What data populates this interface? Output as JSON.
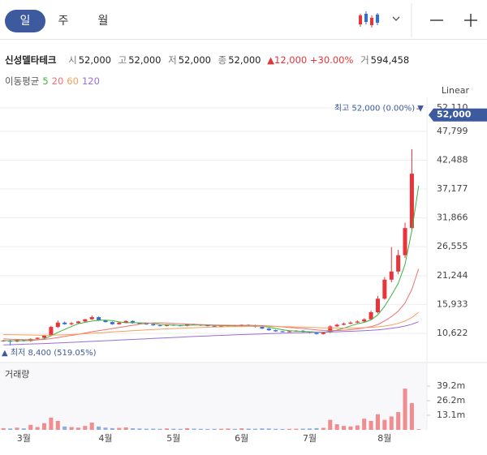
{
  "tabs": [
    "일",
    "주",
    "월"
  ],
  "header": {
    "name": "신성델타테크",
    "stats": [
      {
        "label": "시",
        "value": "52,000"
      },
      {
        "label": "고",
        "value": "52,000"
      },
      {
        "label": "저",
        "value": "52,000"
      },
      {
        "label": "종",
        "value": "52,000"
      }
    ],
    "change": "12,000",
    "change_pct": "+30.00%",
    "volume_label": "거",
    "volume": "594,458"
  },
  "chart_data": [
    {
      "type": "candlestick",
      "scale": "Linear",
      "legend_title": "이동평균",
      "up_color": "#e8343b",
      "down_color": "#2f6fd6",
      "open": [
        9200,
        9300,
        9100,
        9400,
        9200,
        9600,
        9800,
        10200,
        11800,
        12600,
        12300,
        12500,
        12800,
        13200,
        13600,
        13000,
        12700,
        12300,
        12600,
        12900,
        12500,
        12400,
        12300,
        12100,
        12000,
        12200,
        12100,
        12000,
        12300,
        12200,
        12100,
        12000,
        11900,
        12000,
        12100,
        12000,
        12200,
        12100,
        11800,
        11500,
        11200,
        11000,
        10900,
        11000,
        11100,
        10900,
        10700,
        10500,
        10800,
        11900,
        12200,
        12400,
        12600,
        12800,
        13200,
        14500,
        17000,
        20500,
        22000,
        25000,
        30000,
        52000
      ],
      "high": [
        9400,
        9400,
        9500,
        9500,
        9700,
        9900,
        10300,
        12000,
        13000,
        12800,
        12700,
        12900,
        13300,
        13900,
        13700,
        13100,
        12800,
        12700,
        13000,
        13000,
        12600,
        12500,
        12400,
        12200,
        12300,
        12300,
        12200,
        12400,
        12400,
        12300,
        12200,
        12100,
        12100,
        12200,
        12200,
        12300,
        12300,
        12200,
        11900,
        11600,
        11300,
        11100,
        11100,
        11200,
        11200,
        11000,
        10800,
        10900,
        12100,
        12400,
        12600,
        12800,
        13000,
        13400,
        14800,
        17500,
        21000,
        26500,
        26000,
        31000,
        44500,
        52000
      ],
      "low": [
        9100,
        8400,
        9000,
        9100,
        9100,
        9500,
        9700,
        10100,
        11600,
        12200,
        12100,
        12400,
        12700,
        13100,
        12900,
        12600,
        12200,
        12200,
        12500,
        12400,
        12300,
        12200,
        12000,
        11900,
        11900,
        12000,
        11900,
        11900,
        12100,
        12000,
        11900,
        11800,
        11800,
        11900,
        11900,
        11900,
        12000,
        11700,
        11400,
        11100,
        10900,
        10800,
        10800,
        10900,
        10800,
        10600,
        10400,
        10400,
        10700,
        11800,
        12100,
        12300,
        12500,
        12700,
        13100,
        14300,
        16800,
        20000,
        21500,
        24500,
        29500,
        52000
      ],
      "close": [
        9300,
        9100,
        9400,
        9200,
        9600,
        9800,
        10200,
        11800,
        12600,
        12300,
        12500,
        12800,
        13200,
        13600,
        13000,
        12700,
        12300,
        12600,
        12900,
        12500,
        12400,
        12300,
        12100,
        12000,
        12200,
        12100,
        12000,
        12300,
        12200,
        12100,
        12000,
        11900,
        12000,
        12100,
        12000,
        12200,
        12100,
        11800,
        11500,
        11200,
        11000,
        10900,
        11000,
        11100,
        10900,
        10700,
        10500,
        10800,
        11900,
        12200,
        12400,
        12600,
        12800,
        13200,
        14500,
        17000,
        20500,
        22000,
        25000,
        30000,
        40000,
        52000
      ],
      "series": [
        {
          "name": "5",
          "color": "#3db33d",
          "values": [
            9300,
            9250,
            9280,
            9260,
            9320,
            9420,
            9640,
            10160,
            10800,
            11340,
            11880,
            12400,
            12640,
            12880,
            13020,
            13060,
            12960,
            12720,
            12560,
            12600,
            12540,
            12540,
            12440,
            12260,
            12200,
            12140,
            12080,
            12120,
            12140,
            12140,
            12120,
            12100,
            12040,
            12020,
            12000,
            12040,
            12080,
            12040,
            11920,
            11760,
            11520,
            11280,
            11120,
            11040,
            10980,
            10920,
            10840,
            10800,
            11000,
            11220,
            11560,
            12000,
            12380,
            12640,
            13100,
            14020,
            15600,
            17640,
            19800,
            23300,
            29500,
            37800
          ]
        },
        {
          "name": "20",
          "color": "#f07070",
          "values": [
            9600,
            9550,
            9500,
            9470,
            9450,
            9450,
            9500,
            9650,
            9850,
            10050,
            10250,
            10450,
            10680,
            10920,
            11120,
            11300,
            11500,
            11700,
            11900,
            12100,
            12300,
            12450,
            12550,
            12560,
            12520,
            12450,
            12380,
            12320,
            12280,
            12240,
            12200,
            12160,
            12130,
            12110,
            12100,
            12100,
            12100,
            12080,
            12040,
            11980,
            11900,
            11800,
            11700,
            11600,
            11500,
            11380,
            11260,
            11150,
            11120,
            11150,
            11200,
            11300,
            11450,
            11620,
            11850,
            12250,
            12900,
            13700,
            14700,
            16200,
            18700,
            22500
          ]
        },
        {
          "name": "60",
          "color": "#f5a05a",
          "values": [
            10400,
            10380,
            10360,
            10340,
            10320,
            10300,
            10290,
            10300,
            10330,
            10370,
            10420,
            10480,
            10550,
            10630,
            10710,
            10790,
            10870,
            10950,
            11030,
            11110,
            11190,
            11260,
            11330,
            11390,
            11450,
            11500,
            11550,
            11600,
            11650,
            11700,
            11740,
            11780,
            11810,
            11840,
            11860,
            11880,
            11900,
            11910,
            11910,
            11900,
            11880,
            11860,
            11830,
            11800,
            11760,
            11720,
            11680,
            11640,
            11620,
            11610,
            11610,
            11620,
            11640,
            11670,
            11720,
            11810,
            11960,
            12180,
            12460,
            12880,
            13540,
            14500
          ]
        },
        {
          "name": "120",
          "color": "#9a6cd9",
          "values": [
            8500,
            8540,
            8580,
            8620,
            8660,
            8700,
            8740,
            8790,
            8840,
            8900,
            8960,
            9020,
            9080,
            9140,
            9200,
            9260,
            9320,
            9380,
            9440,
            9500,
            9560,
            9620,
            9680,
            9740,
            9800,
            9860,
            9920,
            9980,
            10040,
            10100,
            10150,
            10200,
            10250,
            10300,
            10350,
            10400,
            10440,
            10480,
            10520,
            10560,
            10600,
            10640,
            10680,
            10710,
            10740,
            10770,
            10800,
            10830,
            10870,
            10910,
            10950,
            11000,
            11050,
            11110,
            11180,
            11270,
            11390,
            11540,
            11720,
            11960,
            12300,
            12750
          ]
        }
      ],
      "ylim": [
        5548,
        54050
      ],
      "yticks": [
        {
          "value": 52110,
          "label": "52,110"
        },
        {
          "value": 47799,
          "label": "47,799"
        },
        {
          "value": 42488,
          "label": "42,488"
        },
        {
          "value": 37177,
          "label": "37,177"
        },
        {
          "value": 31866,
          "label": "31,866"
        },
        {
          "value": 26555,
          "label": "26,555"
        },
        {
          "value": 21244,
          "label": "21,244"
        },
        {
          "value": 15933,
          "label": "15,933"
        },
        {
          "value": 10622,
          "label": "10,622"
        }
      ],
      "grid": true,
      "last_price": {
        "value": 52000,
        "label": "52,000",
        "color": "#3d5a9e"
      },
      "annotations": [
        {
          "label": "최고 52,000 (0.00%) ▼",
          "value": 52000,
          "color": "#3d5a9e"
        },
        {
          "label": "▲ 최저 8,400 (519.05%)",
          "value": 8400,
          "color": "#3d5a9e"
        }
      ]
    },
    {
      "type": "bar",
      "title": "거래량",
      "categories": [
        null,
        null,
        null,
        "3월",
        null,
        null,
        null,
        null,
        null,
        null,
        null,
        null,
        null,
        null,
        null,
        "4월",
        null,
        null,
        null,
        null,
        null,
        null,
        null,
        null,
        null,
        "5월",
        null,
        null,
        null,
        null,
        null,
        null,
        null,
        null,
        null,
        "6월",
        null,
        null,
        null,
        null,
        null,
        null,
        null,
        null,
        null,
        "7월",
        null,
        null,
        null,
        null,
        null,
        null,
        null,
        null,
        null,
        null,
        "8월",
        null,
        null,
        null,
        null,
        null
      ],
      "values": [
        1500000,
        1200000,
        2000000,
        1300000,
        4500000,
        2500000,
        6000000,
        11000000,
        8000000,
        3000000,
        2500000,
        2000000,
        3500000,
        6500000,
        3000000,
        2000000,
        1500000,
        1800000,
        2200000,
        1400000,
        1200000,
        1000000,
        1100000,
        900000,
        1300000,
        1000000,
        900000,
        1500000,
        1100000,
        900000,
        800000,
        900000,
        1000000,
        1200000,
        900000,
        1400000,
        1100000,
        1000000,
        1300000,
        1200000,
        900000,
        800000,
        900000,
        1000000,
        1100000,
        1200000,
        1500000,
        1800000,
        9000000,
        5000000,
        3500000,
        3000000,
        4000000,
        10000000,
        8000000,
        14000000,
        9000000,
        12000000,
        16000000,
        37000000,
        24000000,
        594458
      ],
      "ylim": [
        0,
        58200000
      ],
      "yticks": [
        {
          "value": 39200000,
          "label": "39.2m"
        },
        {
          "value": 26200000,
          "label": "26.2m"
        },
        {
          "value": 13100000,
          "label": "13.1m"
        }
      ]
    }
  ]
}
